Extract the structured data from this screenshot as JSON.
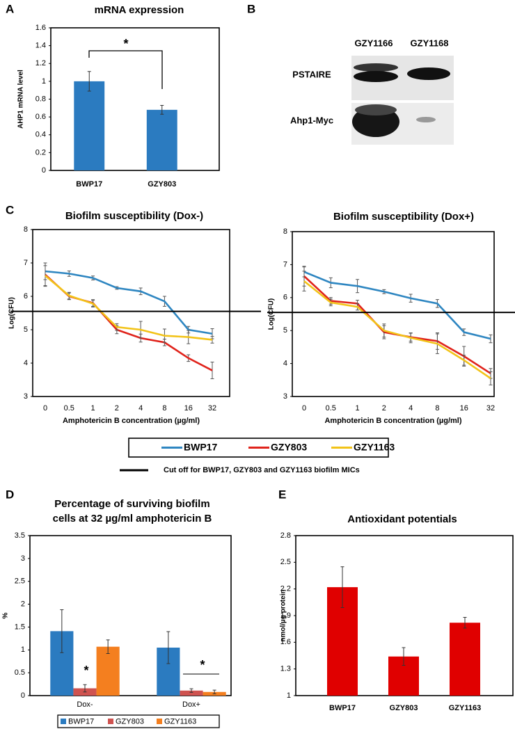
{
  "chart_data": [
    {
      "type": "bar",
      "panel": "A",
      "title": "mRNA expression",
      "ylabel": "AHP1 mRNA level",
      "categories": [
        "BWP17",
        "GZY803"
      ],
      "values": [
        1.0,
        0.68
      ],
      "errors": [
        0.11,
        0.05
      ],
      "color": "#2b7bc0",
      "ylim": [
        0,
        1.6
      ],
      "yticks": [
        0,
        0.2,
        0.4,
        0.6,
        0.8,
        1,
        1.2,
        1.4,
        1.6
      ],
      "significance": [
        "*"
      ]
    },
    {
      "type": "line",
      "panel": "C",
      "title": "Biofilm susceptibility (Dox-)",
      "xlabel": "Amphotericin B concentration (µg/ml)",
      "ylabel": "Log(CFU)",
      "categories": [
        "0",
        "0.5",
        "1",
        "2",
        "4",
        "8",
        "16",
        "32"
      ],
      "series": [
        {
          "name": "BWP17",
          "color": "#2e86c1",
          "values": [
            6.75,
            6.68,
            6.55,
            6.25,
            6.15,
            5.85,
            5.0,
            4.88
          ],
          "errors": [
            0.25,
            0.08,
            0.06,
            0.04,
            0.1,
            0.15,
            0.1,
            0.15
          ]
        },
        {
          "name": "GZY803",
          "color": "#e0231b",
          "values": [
            6.65,
            6.0,
            5.8,
            5.0,
            4.75,
            4.62,
            4.15,
            3.78
          ],
          "errors": [
            0.35,
            0.1,
            0.1,
            0.12,
            0.12,
            0.1,
            0.1,
            0.25
          ]
        },
        {
          "name": "GZY1163",
          "color": "#f2c318",
          "values": [
            6.62,
            6.02,
            5.78,
            5.08,
            5.0,
            4.82,
            4.78,
            4.7
          ],
          "errors": [
            0.3,
            0.1,
            0.1,
            0.1,
            0.25,
            0.2,
            0.2,
            0.1
          ]
        }
      ],
      "ylim": [
        3,
        8
      ],
      "yticks": [
        3,
        4,
        5,
        6,
        7,
        8
      ],
      "cutoff": 5.55,
      "cutoff_label": "Cut off for BWP17, GZY803 and GZY1163 biofilm MICs"
    },
    {
      "type": "line",
      "title": "Biofilm susceptibility (Dox+)",
      "xlabel": "Amphotericin B concentration (µg/ml)",
      "ylabel": "Log(CFU)",
      "categories": [
        "0",
        "0.5",
        "1",
        "2",
        "4",
        "8",
        "16",
        "32"
      ],
      "series": [
        {
          "color": "#2e86c1",
          "values": [
            6.78,
            6.45,
            6.35,
            6.18,
            5.98,
            5.82,
            4.95,
            4.75
          ],
          "errors": [
            0.15,
            0.15,
            0.2,
            0.06,
            0.12,
            0.12,
            0.1,
            0.12
          ]
        },
        {
          "color": "#e0231b",
          "values": [
            6.65,
            5.9,
            5.82,
            4.95,
            4.8,
            4.68,
            4.22,
            3.7
          ],
          "errors": [
            0.3,
            0.1,
            0.1,
            0.2,
            0.12,
            0.25,
            0.3,
            0.15
          ]
        },
        {
          "color": "#f2c318",
          "values": [
            6.5,
            5.85,
            5.72,
            5.0,
            4.78,
            4.6,
            4.1,
            3.55
          ],
          "errors": [
            0.3,
            0.1,
            0.1,
            0.2,
            0.15,
            0.3,
            0.15,
            0.2
          ]
        }
      ],
      "ylim": [
        3,
        8
      ],
      "yticks": [
        3,
        4,
        5,
        6,
        7,
        8
      ],
      "cutoff": 5.55
    },
    {
      "type": "bar",
      "panel": "D",
      "title": [
        "Percentage of surviving biofilm",
        "cells  at 32 µg/ml amphotericin B"
      ],
      "ylabel": "%",
      "categories": [
        "Dox-",
        "Dox+"
      ],
      "series": [
        {
          "name": "BWP17",
          "color": "#2b7bc0",
          "values": [
            1.41,
            1.05
          ],
          "errors": [
            0.47,
            0.35
          ]
        },
        {
          "name": "GZY803",
          "color": "#cf5350",
          "values": [
            0.16,
            0.11
          ],
          "errors": [
            0.08,
            0.04
          ]
        },
        {
          "name": "GZY1163",
          "color": "#f47f1f",
          "values": [
            1.07,
            0.08
          ],
          "errors": [
            0.15,
            0.04
          ]
        }
      ],
      "ylim": [
        0,
        3.5
      ],
      "yticks": [
        0,
        0.5,
        1,
        1.5,
        2,
        2.5,
        3,
        3.5
      ],
      "significance": [
        "*",
        "*"
      ]
    },
    {
      "type": "bar",
      "panel": "E",
      "title": "Antioxidant potentials",
      "ylabel": "nmol/µg protein",
      "categories": [
        "BWP17",
        "GZY803",
        "GZY1163"
      ],
      "values": [
        2.22,
        1.44,
        1.82
      ],
      "errors": [
        0.23,
        0.1,
        0.06
      ],
      "color": "#e00000",
      "ylim": [
        1,
        2.8
      ],
      "yticks": [
        1,
        1.3,
        1.6,
        1.9,
        2.2,
        2.5,
        2.8
      ]
    }
  ],
  "blot": {
    "panel": "B",
    "lanes": [
      "GZY1166",
      "GZY1168"
    ],
    "rows": [
      "PSTAIRE",
      "Ahp1-Myc"
    ]
  }
}
